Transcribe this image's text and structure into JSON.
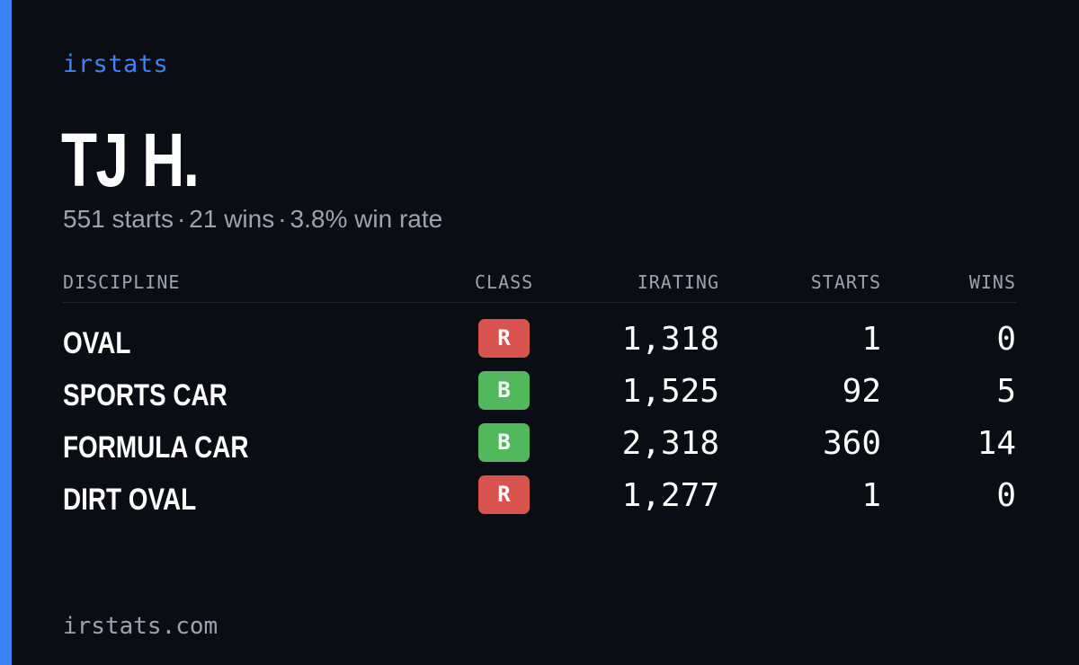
{
  "brand": "irstats",
  "driver": {
    "name": "TJ H."
  },
  "summary": {
    "starts": "551 starts",
    "wins": "21 wins",
    "win_rate": "3.8% win rate",
    "separator": "·"
  },
  "table": {
    "headers": {
      "discipline": "DISCIPLINE",
      "class": "CLASS",
      "irating": "IRATING",
      "starts": "STARTS",
      "wins": "WINS"
    },
    "rows": [
      {
        "discipline": "OVAL",
        "class": "R",
        "class_color": "#d9534f",
        "irating": "1,318",
        "starts": "1",
        "wins": "0"
      },
      {
        "discipline": "SPORTS CAR",
        "class": "B",
        "class_color": "#52b85c",
        "irating": "1,525",
        "starts": "92",
        "wins": "5"
      },
      {
        "discipline": "FORMULA CAR",
        "class": "B",
        "class_color": "#52b85c",
        "irating": "2,318",
        "starts": "360",
        "wins": "14"
      },
      {
        "discipline": "DIRT OVAL",
        "class": "R",
        "class_color": "#d9534f",
        "irating": "1,277",
        "starts": "1",
        "wins": "0"
      }
    ]
  },
  "footer": "irstats.com",
  "colors": {
    "accent": "#3d82f6",
    "background": "#0b0d14",
    "muted_text": "#9ca3b0",
    "class_r": "#d9534f",
    "class_b": "#52b85c"
  }
}
